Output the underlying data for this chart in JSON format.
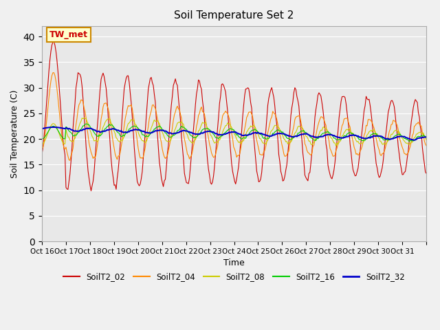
{
  "title": "Soil Temperature Set 2",
  "xlabel": "Time",
  "ylabel": "Soil Temperature (C)",
  "ylim": [
    0,
    42
  ],
  "yticks": [
    0,
    5,
    10,
    15,
    20,
    25,
    30,
    35,
    40
  ],
  "x_labels": [
    "Oct 16",
    "Oct 17",
    "Oct 18",
    "Oct 19",
    "Oct 20",
    "Oct 21",
    "Oct 22",
    "Oct 23",
    "Oct 24",
    "Oct 25",
    "Oct 26",
    "Oct 27",
    "Oct 28",
    "Oct 29",
    "Oct 30",
    "Oct 31",
    ""
  ],
  "series_colors": {
    "SoilT2_02": "#cc0000",
    "SoilT2_04": "#ff8800",
    "SoilT2_08": "#cccc00",
    "SoilT2_16": "#00cc00",
    "SoilT2_32": "#0000cc"
  },
  "annotation_text": "TW_met",
  "annotation_bg": "#ffffcc",
  "annotation_border": "#cc8800",
  "background_color": "#e8e8e8",
  "plot_bg": "#e8e8e8"
}
